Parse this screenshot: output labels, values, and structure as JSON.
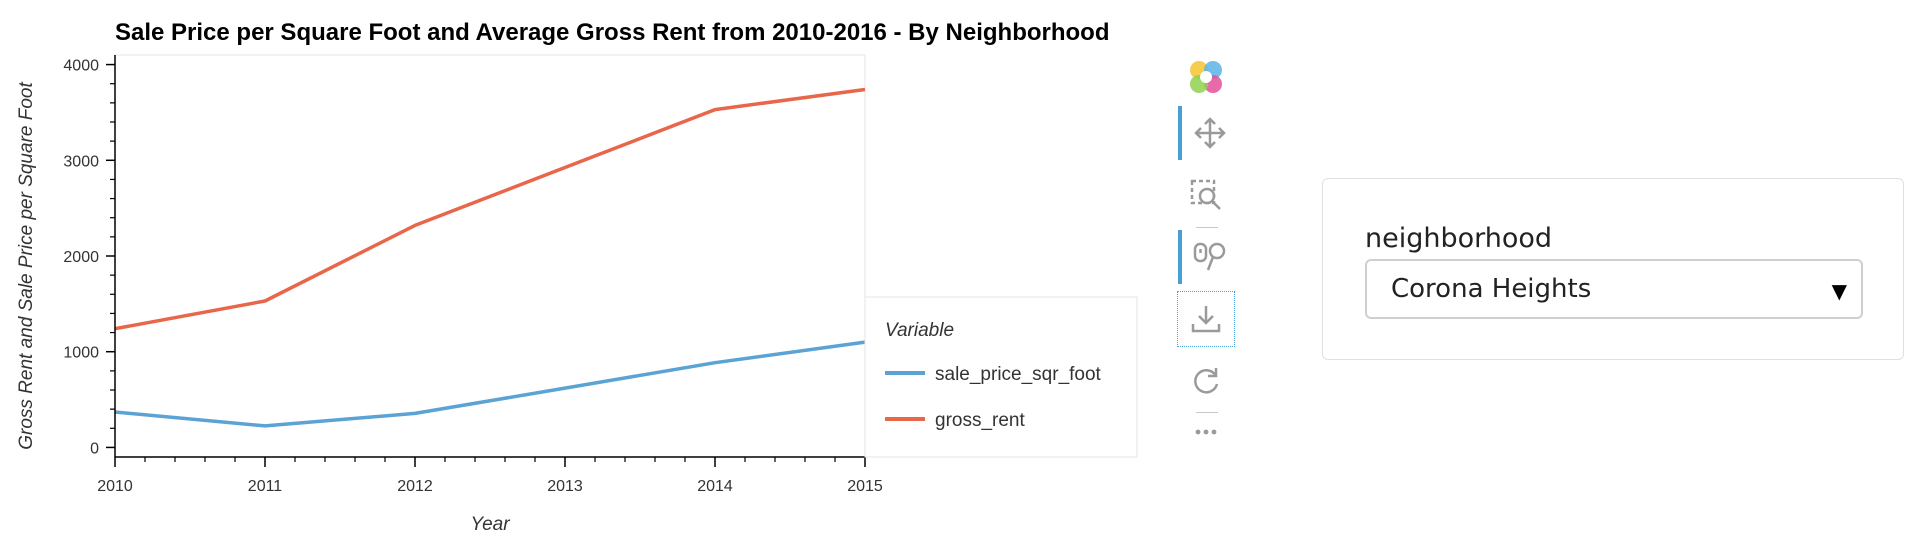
{
  "chart_data": {
    "type": "line",
    "title": "Sale Price per Square Foot and Average Gross Rent from 2010-2016 - By Neighborhood",
    "xlabel": "Year",
    "ylabel": "Gross Rent and Sale Price per Square Foot",
    "x": [
      2010,
      2011,
      2012,
      2013,
      2014,
      2015
    ],
    "xlim": [
      2010,
      2015
    ],
    "ylim": [
      -100,
      4100
    ],
    "x_ticks": [
      "2010",
      "2011",
      "2012",
      "2013",
      "2014",
      "2015"
    ],
    "y_ticks": [
      "0",
      "1000",
      "2000",
      "3000",
      "4000"
    ],
    "grid": false,
    "legend": {
      "title": "Variable",
      "placement": "right"
    },
    "series": [
      {
        "name": "sale_price_sqr_foot",
        "color": "#5aa3d4",
        "values": [
          370,
          225,
          355,
          620,
          885,
          1100
        ]
      },
      {
        "name": "gross_rent",
        "color": "#e8664a",
        "values": [
          1240,
          1530,
          2320,
          2925,
          3530,
          3740
        ]
      }
    ]
  },
  "toolbar": {
    "icons": [
      "bokeh-logo-icon",
      "pan-icon",
      "box-zoom-icon",
      "wheel-zoom-icon",
      "save-icon",
      "reset-icon",
      "more-icon"
    ]
  },
  "widget": {
    "label": "neighborhood",
    "selected": "Corona Heights",
    "caret": "▼"
  }
}
